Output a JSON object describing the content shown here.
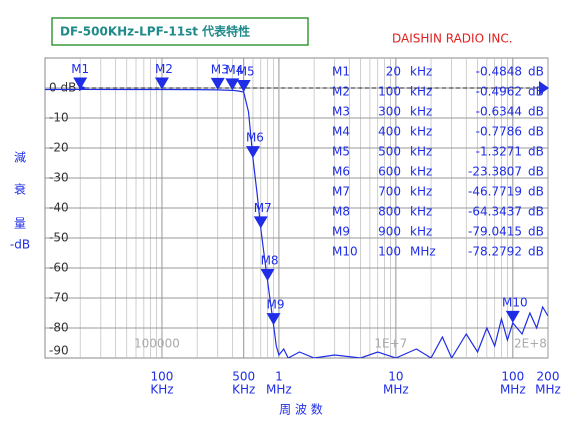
{
  "chart_data": {
    "type": "line",
    "title": "DF-500KHz-LPF-11st 代表特性",
    "subtitle": "DAISHIN RADIO INC.",
    "y_label": [
      "減",
      "衰",
      "量",
      "-dB"
    ],
    "x_label": "周 波 数",
    "xlim": [
      10,
      200000
    ],
    "ylim": [
      -90,
      10
    ],
    "log_x": true,
    "grid": true,
    "xticks": [
      {
        "value": 100,
        "label": "100"
      },
      {
        "value": 500,
        "label": "500"
      },
      {
        "value": 1000,
        "label": "1"
      },
      {
        "value": 10000,
        "label": "10"
      },
      {
        "value": 100000,
        "label": "100"
      },
      {
        "value": 200000,
        "label": "200"
      }
    ],
    "xtick_units": [
      "KHz",
      "KHz",
      "MHz",
      "MHz",
      "MHz",
      "MHz"
    ],
    "grid_annotations": [
      {
        "value": 100,
        "label": "100000"
      },
      {
        "value": 10000,
        "label": "1E+7"
      },
      {
        "value": 200000,
        "label": "2E+8"
      }
    ],
    "yticks": [
      {
        "value": 0,
        "label": "0 dB"
      },
      -10,
      -20,
      -30,
      -40,
      -50,
      -60,
      -70,
      -80,
      -90
    ],
    "series": [
      {
        "color": "#1f2ee6",
        "x": [
          10,
          20,
          50,
          100,
          200,
          300,
          400,
          450,
          500,
          550,
          600,
          650,
          700,
          750,
          800,
          850,
          900,
          950,
          1000,
          1100,
          1200,
          1500,
          2000,
          3000,
          5000,
          7000,
          10000,
          15000,
          20000,
          25000,
          30000,
          40000,
          50000,
          60000,
          70000,
          80000,
          90000,
          100000,
          120000,
          140000,
          160000,
          180000,
          200000
        ],
        "values": [
          -0.5,
          -0.48,
          -0.49,
          -0.5,
          -0.55,
          -0.63,
          -0.78,
          -1,
          -1.33,
          -8,
          -23.4,
          -35,
          -46.8,
          -56,
          -64.3,
          -72,
          -79,
          -86,
          -89,
          -87,
          -90,
          -88,
          -90,
          -89,
          -90,
          -88,
          -90,
          -87,
          -90,
          -83,
          -90,
          -82,
          -88,
          -80,
          -86,
          -77,
          -84,
          -78.3,
          -82,
          -75,
          -80,
          -73,
          -76
        ]
      }
    ],
    "value_unit": "dB",
    "markers": [
      {
        "name": "M1",
        "x": 20,
        "x_label": "20",
        "x_unit": "kHz",
        "value": -0.4848
      },
      {
        "name": "M2",
        "x": 100,
        "x_label": "100",
        "x_unit": "kHz",
        "value": -0.4962
      },
      {
        "name": "M3",
        "x": 300,
        "x_label": "300",
        "x_unit": "kHz",
        "value": -0.6344
      },
      {
        "name": "M4",
        "x": 400,
        "x_label": "400",
        "x_unit": "kHz",
        "value": -0.7786
      },
      {
        "name": "M5",
        "x": 500,
        "x_label": "500",
        "x_unit": "kHz",
        "value": -1.3271
      },
      {
        "name": "M6",
        "x": 600,
        "x_label": "600",
        "x_unit": "kHz",
        "value": -23.3807
      },
      {
        "name": "M7",
        "x": 700,
        "x_label": "700",
        "x_unit": "kHz",
        "value": -46.7719
      },
      {
        "name": "M8",
        "x": 800,
        "x_label": "800",
        "x_unit": "kHz",
        "value": -64.3437
      },
      {
        "name": "M9",
        "x": 900,
        "x_label": "900",
        "x_unit": "kHz",
        "value": -79.0415
      },
      {
        "name": "M10",
        "x": 100000,
        "x_label": "100",
        "x_unit": "MHz",
        "value": -78.2792
      }
    ]
  }
}
